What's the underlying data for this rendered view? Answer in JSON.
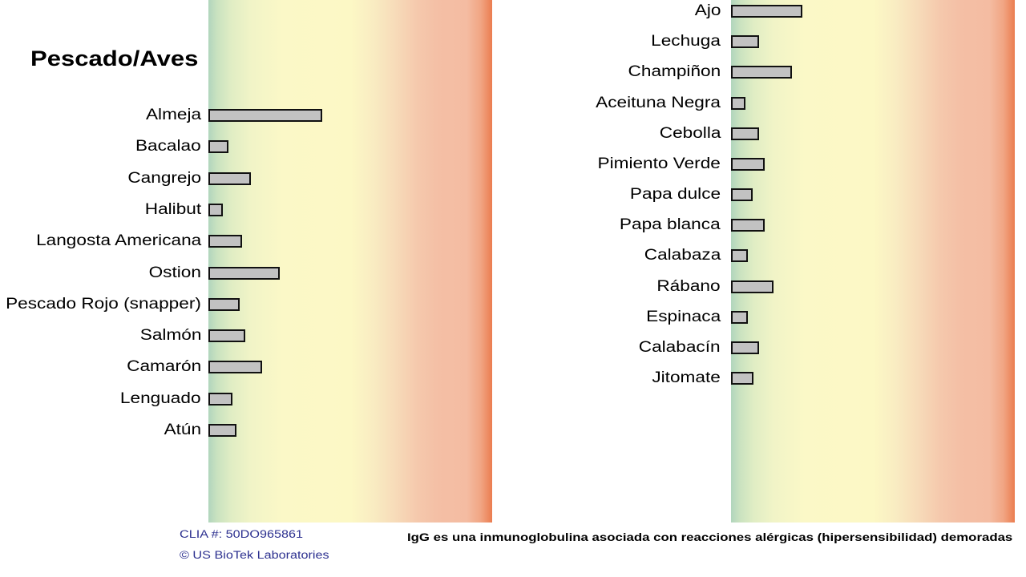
{
  "colors": {
    "bar_fill": "#c2c2c2",
    "bar_stroke": "#111111",
    "scale_low": "#b1d5bd",
    "scale_mid": "#fcf8c5",
    "scale_high": "#eb7d50",
    "footer_text": "#2b2f8f"
  },
  "chart_data": [
    {
      "type": "bar",
      "orientation": "horizontal",
      "title": "Pescado/Aves",
      "categories": [
        "Almeja",
        "Bacalao",
        "Cangrejo",
        "Halibut",
        "Langosta Americana",
        "Ostion",
        "Pescado Rojo (snapper)",
        "Salmón",
        "Camarón",
        "Lenguado",
        "Atún"
      ],
      "values": [
        40,
        7,
        15,
        5,
        12,
        25,
        11,
        13,
        19,
        8.5,
        10
      ],
      "xlim": [
        0,
        100
      ],
      "grid": false,
      "legend": "none"
    },
    {
      "type": "bar",
      "orientation": "horizontal",
      "categories": [
        "Ajo",
        "Lechuga",
        "Champiñon",
        "Aceituna Negra",
        "Cebolla",
        "Pimiento Verde",
        "Papa dulce",
        "Papa blanca",
        "Calabaza",
        "Rábano",
        "Espinaca",
        "Calabacín",
        "Jitomate"
      ],
      "values": [
        25,
        10,
        21.5,
        5,
        10,
        12,
        7.5,
        12,
        6,
        15,
        6,
        10,
        8
      ],
      "xlim": [
        0,
        100
      ],
      "grid": false,
      "legend": "none"
    }
  ],
  "footer": {
    "clia": "CLIA #: 50DO965861",
    "copyright": "© US BioTek Laboratories",
    "note": "IgG es una inmunoglobulina asociada con reacciones alérgicas (hipersensibilidad) demoradas"
  }
}
